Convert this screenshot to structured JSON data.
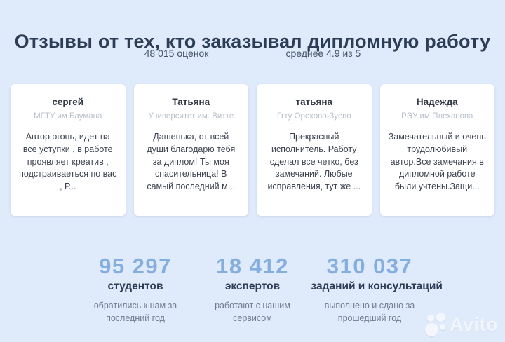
{
  "header": {
    "title": "Отзывы от тех, кто заказывал дипломную работу",
    "ratings_count": "48 015 оценок",
    "average_rating": "среднее 4.9 из 5"
  },
  "reviews": [
    {
      "name": "сергей",
      "school": "МГТУ им Баумана",
      "text": "Автор огонь, идет на все уступки , в работе проявляет креатив , подстраиваеться по вас , Р..."
    },
    {
      "name": "Татьяна",
      "school": "Университет им. Витте",
      "text": "Дашенька, от всей души благодарю тебя за диплом! Ты моя спасительница! В самый последний м..."
    },
    {
      "name": "татьяна",
      "school": "Ггту Орехово-Зуево",
      "text": "Прекрасный исполнитель. Работу сделал все четко, без замечаний. Любые исправления, тут же ..."
    },
    {
      "name": "Надежда",
      "school": "РЭУ им.Плеханова",
      "text": "Замечательный и очень трудолюбивый автор.Все замечания в дипломной работе были учтены.Защи..."
    }
  ],
  "stats": [
    {
      "value": "95 297",
      "label": "студентов",
      "desc": "обратились к нам за последний год"
    },
    {
      "value": "18 412",
      "label": "экспертов",
      "desc": "работают с нашим сервисом"
    },
    {
      "value": "310 037",
      "label": "заданий и консультаций",
      "desc": "выполнено и сдано за прошедший год"
    }
  ],
  "watermark": {
    "brand": "Avito"
  },
  "colors": {
    "background": "#dfeafa",
    "title": "#2e3d56",
    "accent_number": "#83aede",
    "card_background": "#ffffff",
    "muted_gray": "#b8bfc9"
  }
}
